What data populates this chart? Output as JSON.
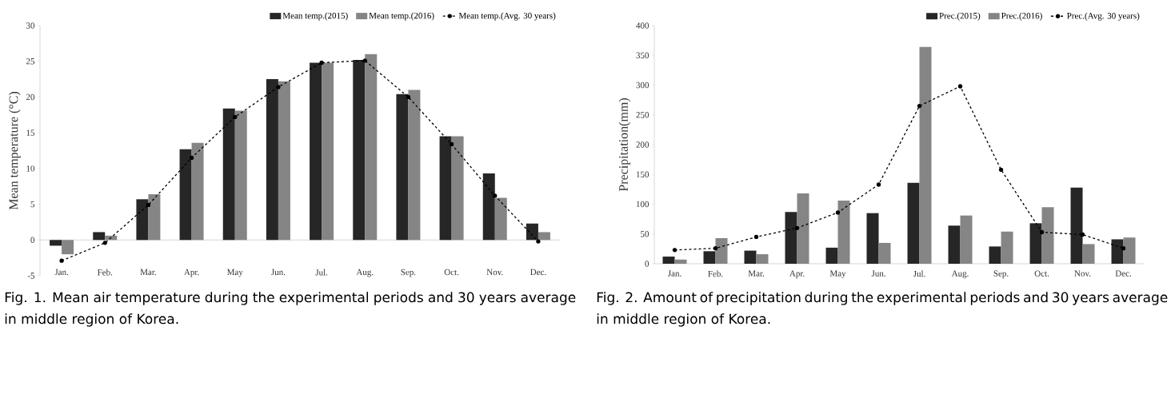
{
  "chart_data": [
    {
      "type": "bar",
      "categories": [
        "Jan.",
        "Feb.",
        "Mar.",
        "Apr.",
        "May",
        "Jun.",
        "Jul.",
        "Aug.",
        "Sep.",
        "Oct.",
        "Nov.",
        "Dec."
      ],
      "series": [
        {
          "name": "Mean temp.(2015)",
          "color": "#262626",
          "values": [
            -0.8,
            1.1,
            5.7,
            12.7,
            18.4,
            22.5,
            24.8,
            25.2,
            20.4,
            14.5,
            9.3,
            2.3
          ]
        },
        {
          "name": "Mean temp.(2016)",
          "color": "#858585",
          "values": [
            -2.0,
            0.6,
            6.4,
            13.6,
            18.1,
            22.2,
            24.8,
            26.0,
            21.0,
            14.5,
            5.9,
            1.1
          ]
        },
        {
          "name": "Mean temp.(Avg. 30 years)",
          "type": "line",
          "color": "#000000",
          "marker": "circle",
          "line_style": "dashed",
          "values": [
            -2.9,
            -0.4,
            4.9,
            11.5,
            17.2,
            21.4,
            24.8,
            25.1,
            20.0,
            13.4,
            6.2,
            -0.2
          ]
        }
      ],
      "ylabel": "Mean temperature (°C)",
      "ylim": [
        -5,
        30
      ],
      "yticks": [
        -5,
        0,
        5,
        10,
        15,
        20,
        25,
        30
      ],
      "legend": "top right",
      "annotations": [
        "Fig. 1. Mean air temperature during the experimental periods and 30 years average in middle region of Korea."
      ]
    },
    {
      "type": "bar",
      "categories": [
        "Jan.",
        "Feb.",
        "Mar.",
        "Apr.",
        "May",
        "Jun.",
        "Jul.",
        "Aug.",
        "Sep.",
        "Oct.",
        "Nov.",
        "Dec."
      ],
      "series": [
        {
          "name": "Prec.(2015)",
          "color": "#262626",
          "values": [
            12,
            21,
            22,
            87,
            27,
            85,
            136,
            64,
            29,
            68,
            128,
            41
          ]
        },
        {
          "name": "Prec.(2016)",
          "color": "#858585",
          "values": [
            7,
            43,
            16,
            118,
            106,
            35,
            364,
            81,
            54,
            95,
            33,
            44
          ]
        },
        {
          "name": "Prec.(Avg. 30 years)",
          "type": "line",
          "color": "#000000",
          "marker": "circle",
          "line_style": "dashed",
          "values": [
            23,
            26,
            45,
            60,
            86,
            133,
            265,
            298,
            158,
            53,
            49,
            26
          ]
        }
      ],
      "ylabel": "Precipitation(mm)",
      "ylim": [
        0,
        400
      ],
      "yticks": [
        0,
        50,
        100,
        150,
        200,
        250,
        300,
        350,
        400
      ],
      "legend": "top right",
      "annotations": [
        "Fig. 2. Amount of precipitation during the experimental periods and 30 years average in middle region of Korea."
      ]
    }
  ]
}
